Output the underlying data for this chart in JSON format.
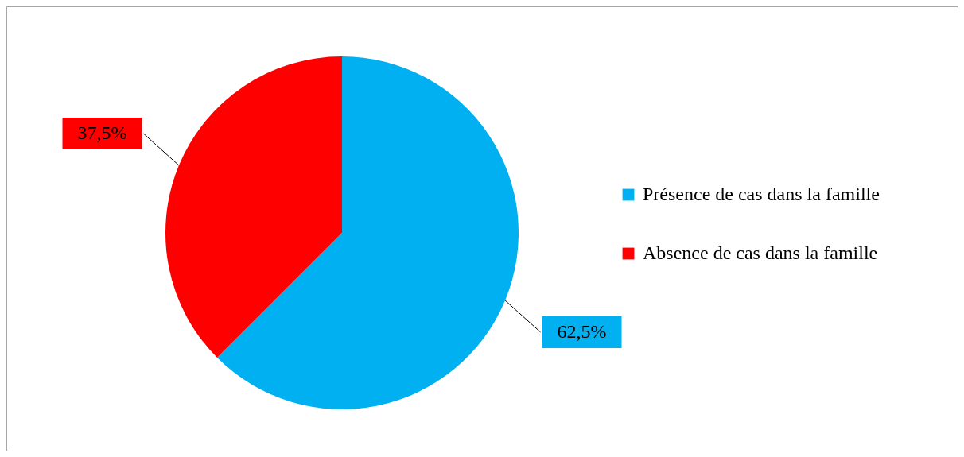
{
  "chart_data": {
    "type": "pie",
    "categories": [
      "Présence de cas dans la famille",
      "Absence de cas dans la famille"
    ],
    "values": [
      62.5,
      37.5
    ],
    "colors": [
      "#00b0f0",
      "#ff0000"
    ],
    "value_labels": [
      "62,5%",
      "37,5%"
    ],
    "legend": "right"
  }
}
